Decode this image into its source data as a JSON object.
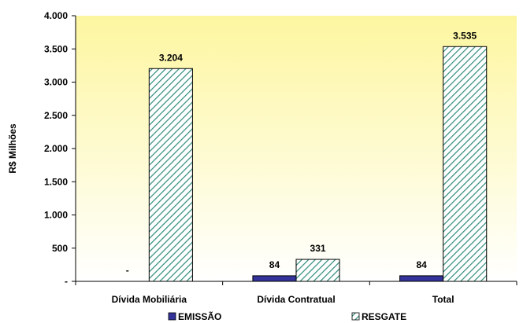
{
  "chart_data": {
    "type": "bar",
    "title": "",
    "xlabel": "",
    "ylabel": "R$ Milhões",
    "ylim": [
      0,
      4000
    ],
    "yticks": [
      {
        "value": 0,
        "label": "-"
      },
      {
        "value": 500,
        "label": "500"
      },
      {
        "value": 1000,
        "label": "1.000"
      },
      {
        "value": 1500,
        "label": "1.500"
      },
      {
        "value": 2000,
        "label": "2.000"
      },
      {
        "value": 2500,
        "label": "2.500"
      },
      {
        "value": 3000,
        "label": "3.000"
      },
      {
        "value": 3500,
        "label": "3.500"
      },
      {
        "value": 4000,
        "label": "4.000"
      }
    ],
    "categories": [
      "Dívida Mobiliária",
      "Dívida Contratual",
      "Total"
    ],
    "series": [
      {
        "name": "EMISSÃO",
        "color": "#333399",
        "pattern": "solid",
        "values": [
          0,
          84,
          84
        ],
        "labels": [
          "-",
          "84",
          "84"
        ]
      },
      {
        "name": "RESGATE",
        "color": "#2e8b7a",
        "pattern": "diagonal-hatch",
        "values": [
          3204,
          331,
          3535
        ],
        "labels": [
          "3.204",
          "331",
          "3.535"
        ]
      }
    ],
    "grid": false,
    "legend": "bottom",
    "plot_background": "yellow-to-white gradient"
  }
}
